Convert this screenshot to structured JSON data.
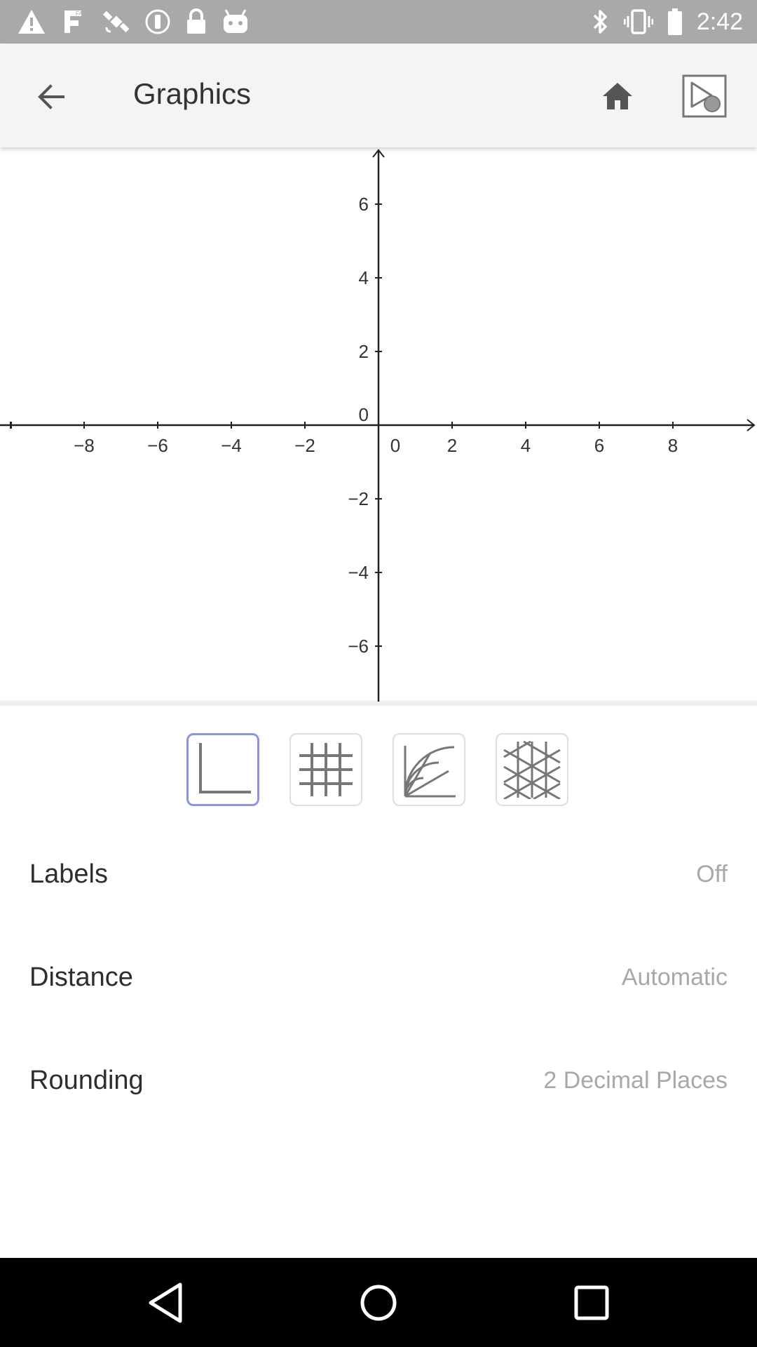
{
  "status_bar": {
    "time": "2:42",
    "left_icons": [
      "warning-icon",
      "fake-gps-icon",
      "satellite-icon",
      "dnd-icon",
      "lock-icon",
      "android-icon"
    ],
    "right_icons": [
      "bluetooth-icon",
      "vibrate-icon",
      "battery-icon"
    ]
  },
  "toolbar": {
    "title": "Graphics",
    "icons": [
      "back-arrow-icon",
      "home-icon",
      "graphics-view-icon"
    ]
  },
  "graph": {
    "x_ticks": [
      "−8",
      "−6",
      "−4",
      "−2",
      "0",
      "2",
      "4",
      "6",
      "8"
    ],
    "y_ticks": [
      "6",
      "4",
      "2",
      "0",
      "−2",
      "−4",
      "−6"
    ],
    "origin_label": "0"
  },
  "grid_types": {
    "options": [
      "axes-only-icon",
      "cartesian-grid-icon",
      "polar-grid-icon",
      "isometric-grid-icon"
    ],
    "selected": "axes-only-icon",
    "accent_color": "#8e93e0"
  },
  "settings": {
    "labels": {
      "label": "Labels",
      "value": "Off"
    },
    "distance": {
      "label": "Distance",
      "value": "Automatic"
    },
    "rounding": {
      "label": "Rounding",
      "value": "2 Decimal Places"
    }
  },
  "nav_bar": {
    "icons": [
      "nav-back-icon",
      "nav-home-icon",
      "nav-recents-icon"
    ]
  }
}
